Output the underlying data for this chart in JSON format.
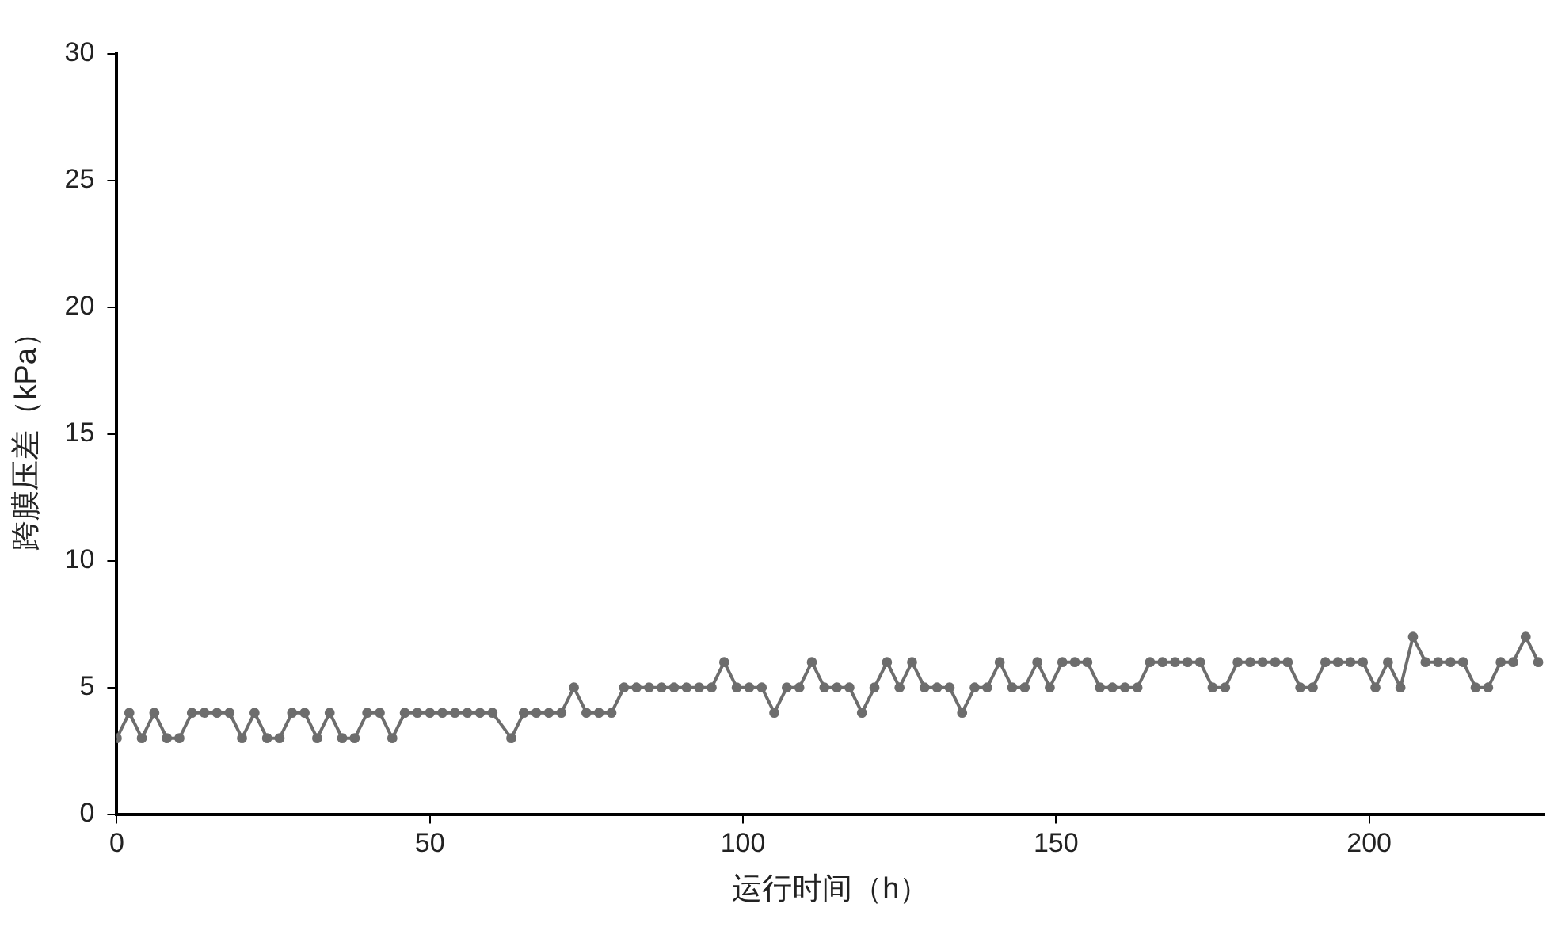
{
  "chart_data": {
    "type": "line",
    "xlabel": "运行时间（h）",
    "ylabel": "跨膜压差（kPa）",
    "x": [
      0,
      2,
      4,
      6,
      8,
      10,
      12,
      14,
      16,
      18,
      20,
      22,
      24,
      26,
      28,
      30,
      32,
      34,
      36,
      38,
      40,
      42,
      44,
      46,
      48,
      50,
      52,
      54,
      56,
      58,
      60,
      63,
      65,
      67,
      69,
      71,
      73,
      75,
      77,
      79,
      81,
      83,
      85,
      87,
      89,
      91,
      93,
      95,
      97,
      99,
      101,
      103,
      105,
      107,
      109,
      111,
      113,
      115,
      117,
      119,
      121,
      123,
      125,
      127,
      129,
      131,
      133,
      135,
      137,
      139,
      141,
      143,
      145,
      147,
      149,
      151,
      153,
      155,
      157,
      159,
      161,
      163,
      165,
      167,
      169,
      171,
      173,
      175,
      177,
      179,
      181,
      183,
      185,
      187,
      189,
      191,
      193,
      195,
      197,
      199,
      201,
      203,
      205,
      207,
      209,
      211,
      213,
      215,
      217,
      219,
      221,
      223,
      225,
      227
    ],
    "series": [
      {
        "color": "#6d6d6d",
        "values": [
          3,
          4,
          3,
          4,
          3,
          3,
          4,
          4,
          4,
          4,
          3,
          4,
          3,
          3,
          4,
          4,
          3,
          4,
          3,
          3,
          4,
          4,
          3,
          4,
          4,
          4,
          4,
          4,
          4,
          4,
          4,
          3,
          4,
          4,
          4,
          4,
          5,
          4,
          4,
          4,
          5,
          5,
          5,
          5,
          5,
          5,
          5,
          5,
          6,
          5,
          5,
          5,
          4,
          5,
          5,
          6,
          5,
          5,
          5,
          4,
          5,
          6,
          5,
          6,
          5,
          5,
          5,
          4,
          5,
          5,
          6,
          5,
          5,
          6,
          5,
          6,
          6,
          6,
          5,
          5,
          5,
          5,
          6,
          6,
          6,
          6,
          6,
          5,
          5,
          6,
          6,
          6,
          6,
          6,
          5,
          5,
          6,
          6,
          6,
          6,
          5,
          6,
          5,
          7,
          6,
          6,
          6,
          6,
          5,
          5,
          6,
          6,
          7,
          6
        ]
      }
    ],
    "xlim": [
      0,
      228
    ],
    "xticks": [
      0,
      50,
      100,
      150,
      200
    ],
    "ylim": [
      0,
      30
    ],
    "yticks": [
      0,
      5,
      10,
      15,
      20,
      25,
      30
    ],
    "grid": false,
    "legend": false,
    "marker": "circle",
    "line_style": "solid"
  }
}
